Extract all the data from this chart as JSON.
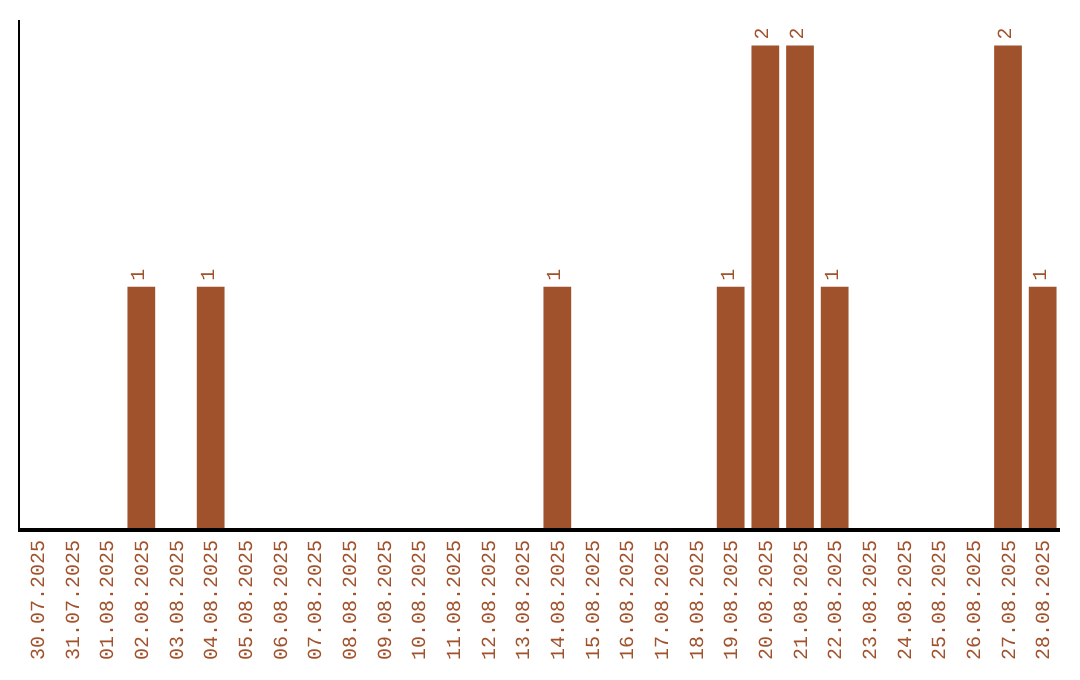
{
  "chart_data": {
    "type": "bar",
    "categories": [
      "30.07.2025",
      "31.07.2025",
      "01.08.2025",
      "02.08.2025",
      "03.08.2025",
      "04.08.2025",
      "05.08.2025",
      "06.08.2025",
      "07.08.2025",
      "08.08.2025",
      "09.08.2025",
      "10.08.2025",
      "11.08.2025",
      "12.08.2025",
      "13.08.2025",
      "14.08.2025",
      "15.08.2025",
      "16.08.2025",
      "17.08.2025",
      "18.08.2025",
      "19.08.2025",
      "20.08.2025",
      "21.08.2025",
      "22.08.2025",
      "23.08.2025",
      "24.08.2025",
      "25.08.2025",
      "26.08.2025",
      "27.08.2025",
      "28.08.2025"
    ],
    "values": [
      0,
      0,
      0,
      1,
      0,
      1,
      0,
      0,
      0,
      0,
      0,
      0,
      0,
      0,
      0,
      1,
      0,
      0,
      0,
      0,
      1,
      2,
      2,
      1,
      0,
      0,
      0,
      0,
      2,
      1
    ],
    "value_labels": [
      null,
      null,
      null,
      "1",
      null,
      "1",
      null,
      null,
      null,
      null,
      null,
      null,
      null,
      null,
      null,
      "1",
      null,
      null,
      null,
      null,
      "1",
      "2",
      "2",
      "1",
      null,
      null,
      null,
      null,
      "2",
      "1"
    ],
    "color": "#a0522d"
  }
}
